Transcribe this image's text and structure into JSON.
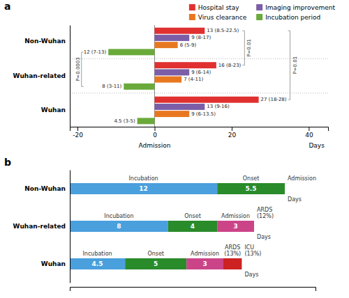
{
  "chart_data": [
    {
      "type": "bar",
      "title": "a",
      "orientation": "horizontal",
      "categories": [
        "Non-Wuhan",
        "Wuhan-related",
        "Wuhan"
      ],
      "series": [
        {
          "name": "Hospital stay",
          "color": "#e03030",
          "values": [
            13,
            16,
            27
          ],
          "value_labels": [
            "13 (8.5-22.5)",
            "16 (8-23)",
            "27 (18-28)"
          ]
        },
        {
          "name": "Imaging improvement",
          "color": "#7b5ea7",
          "values": [
            9,
            9,
            13
          ],
          "value_labels": [
            "9 (8-17)",
            "9 (6-14)",
            "13 (9-16)"
          ]
        },
        {
          "name": "Virus clearance",
          "color": "#e87820",
          "values": [
            6,
            7,
            9
          ],
          "value_labels": [
            "6 (5-9)",
            "7 (4-11)",
            "9 (6-13.5)"
          ]
        },
        {
          "name": "Incubation period",
          "color": "#6aaa3a",
          "values": [
            -12,
            -8,
            -4.5
          ],
          "value_labels": [
            "12 (7-13)",
            "8 (3-11)",
            "4.5 (3-5)"
          ]
        }
      ],
      "data_labels": true,
      "xlim": [
        -22,
        45
      ],
      "xticks": [
        -20,
        0,
        20,
        40
      ],
      "xlabel": "Days",
      "legend": "top-right",
      "annotations": [
        {
          "text": "Admission",
          "x": 0
        },
        {
          "text": "P=0.0003",
          "series": "Incubation period",
          "categories": [
            "Non-Wuhan",
            "Wuhan-related"
          ]
        },
        {
          "text": "P=0.01",
          "series": "Hospital stay",
          "categories": [
            "Non-Wuhan",
            "Wuhan-related"
          ]
        },
        {
          "text": "P=0.01",
          "series": "Hospital stay",
          "categories": [
            "Non-Wuhan",
            "Wuhan"
          ]
        }
      ]
    },
    {
      "type": "bar",
      "title": "b",
      "orientation": "horizontal",
      "stacked": true,
      "data_labels": true,
      "tick_labels": "y",
      "categories": [
        "Non-Wuhan",
        "Wuhan-related",
        "Wuhan"
      ],
      "series": [
        {
          "name": "Incubation",
          "color": "#4a9fdd",
          "values": [
            12,
            8,
            4.5
          ]
        },
        {
          "name": "Onset",
          "color": "#2a8b2a",
          "values": [
            5.5,
            4,
            5
          ]
        },
        {
          "name": "Admission",
          "color": "#cc4488",
          "values": [
            null,
            3,
            3
          ]
        },
        {
          "name": "ARDS\n(13%)",
          "color": "#cc2222",
          "values": [
            null,
            null,
            1.5
          ],
          "value_labels": [
            null,
            null,
            null
          ]
        }
      ],
      "xlim": [
        0,
        20
      ],
      "xlabel": "Days",
      "annotations": [
        {
          "text": "Admission",
          "category": "Non-Wuhan"
        },
        {
          "text": "ARDS\n(12%)",
          "category": "Wuhan-related"
        },
        {
          "text": "ICU\n(13%)",
          "category": "Wuhan"
        }
      ]
    }
  ]
}
